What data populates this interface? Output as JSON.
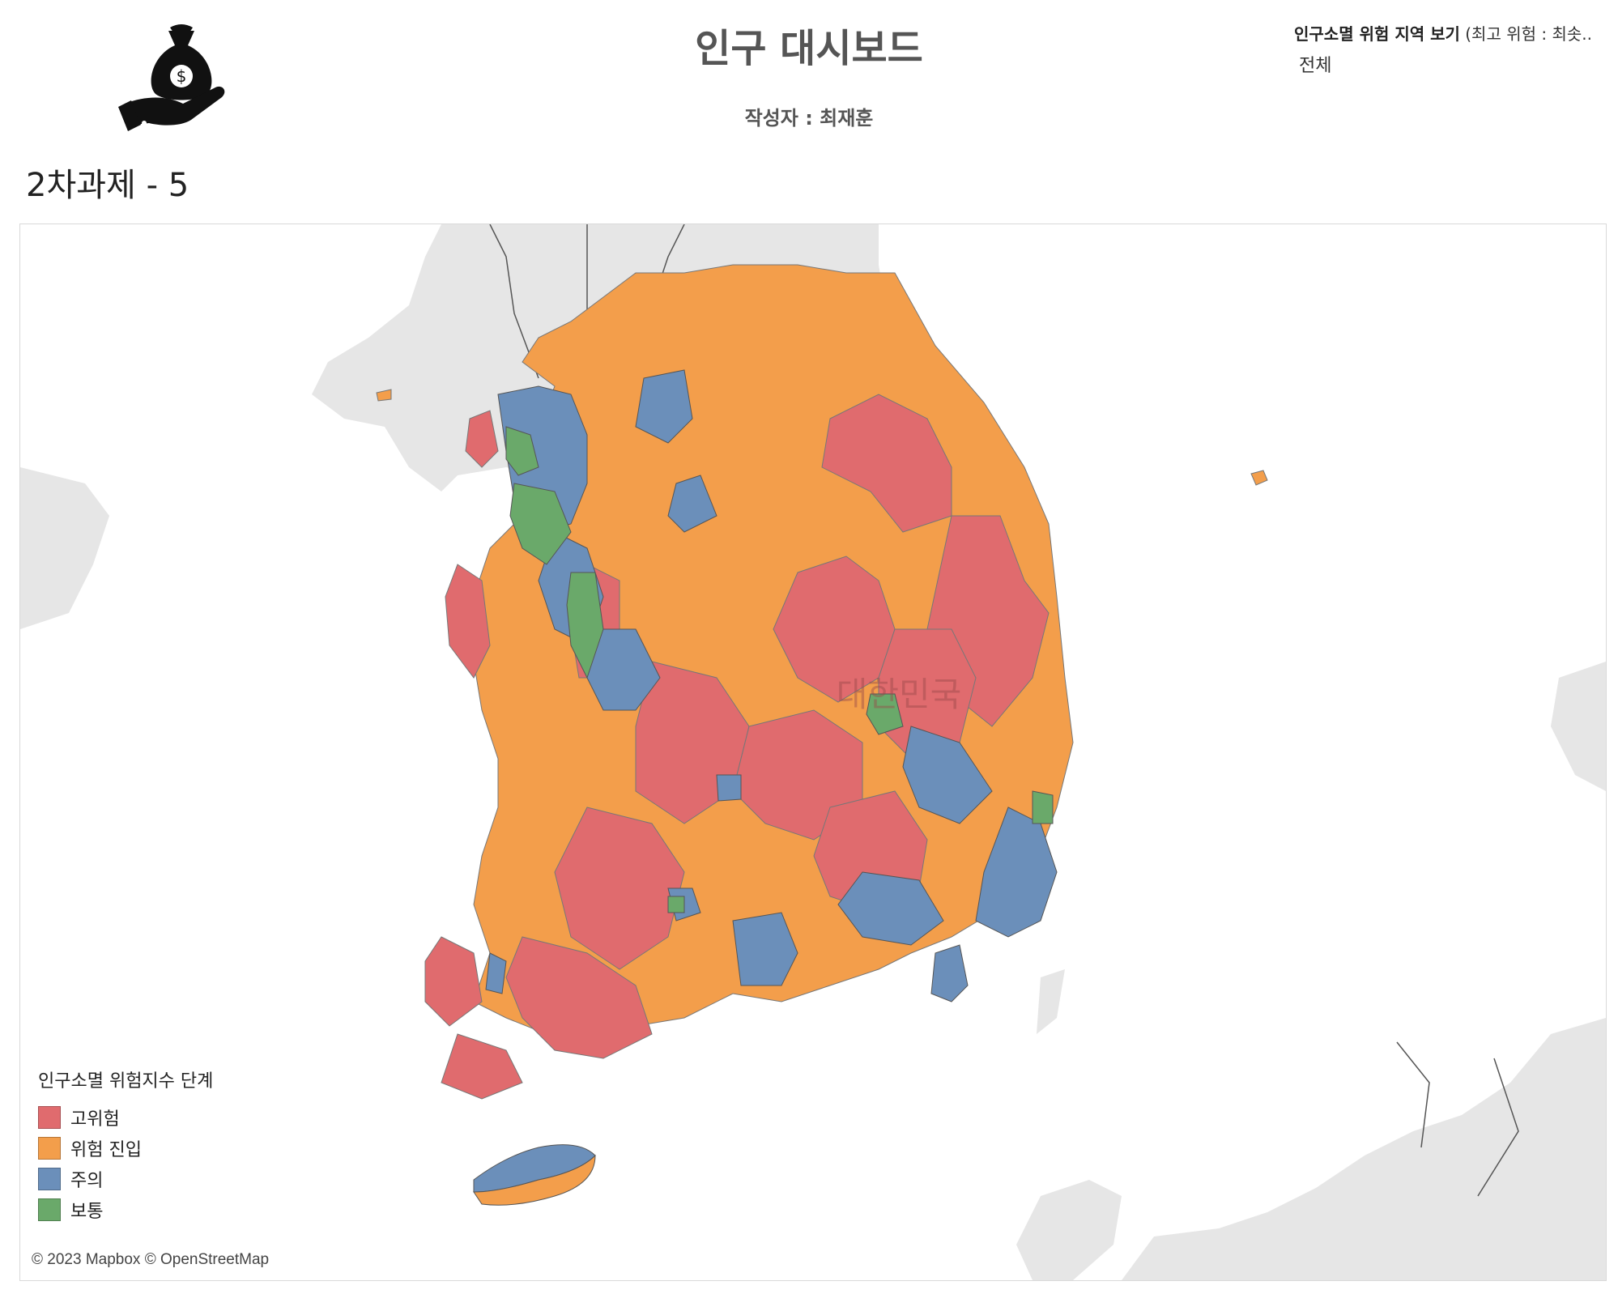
{
  "header": {
    "title": "인구 대시보드",
    "author": "작성자 : 최재훈",
    "logo_icon": "money-bag-hand-icon"
  },
  "filter": {
    "title_bold": "인구소멸 위험 지역 보기",
    "title_rest": " (최고 위험 : 최솟..",
    "value": "전체"
  },
  "sheet": {
    "title": "2차과제 - 5"
  },
  "map": {
    "country_label": "대한민국",
    "attribution": "© 2023 Mapbox © OpenStreetMap",
    "land_color": "#e6e6e6",
    "sea_color": "#ffffff"
  },
  "legend": {
    "title": "인구소멸 위험지수 단계",
    "items": [
      {
        "label": "고위험",
        "color": "#e06b6e"
      },
      {
        "label": "위험 진입",
        "color": "#f39e4b"
      },
      {
        "label": "주의",
        "color": "#6b8fba"
      },
      {
        "label": "보통",
        "color": "#6aa96a"
      }
    ]
  }
}
